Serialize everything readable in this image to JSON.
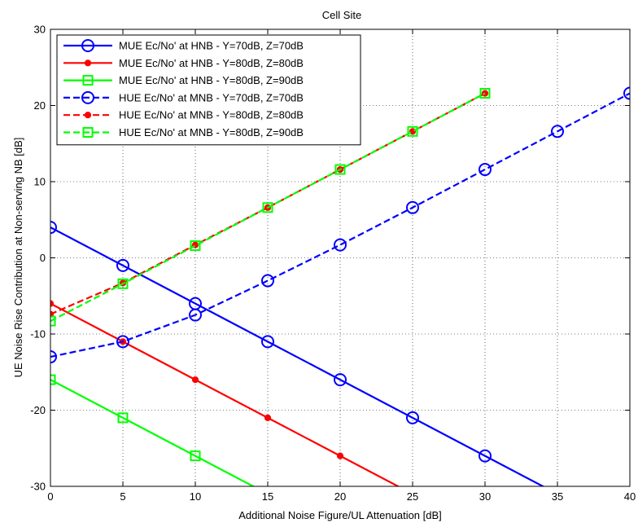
{
  "chart_data": {
    "type": "line",
    "title": "Cell Site",
    "xlabel": "Additional Noise Figure/UL Attenuation [dB]",
    "ylabel": "UE Noise Rise Contribution at Non-serving NB [dB]",
    "xlim": [
      0,
      40
    ],
    "ylim": [
      -30,
      30
    ],
    "xticks": [
      0,
      5,
      10,
      15,
      20,
      25,
      30,
      35,
      40
    ],
    "yticks": [
      -30,
      -20,
      -10,
      0,
      10,
      20,
      30
    ],
    "grid": true,
    "legend_position": "top-left",
    "series": [
      {
        "name": "MUE Ec/No' at HNB - Y=70dB, Z=70dB",
        "color": "#0000ff",
        "dash": "solid",
        "marker": "circle",
        "x": [
          0,
          5,
          10,
          15,
          20,
          25,
          30,
          35,
          40
        ],
        "y": [
          4,
          -1,
          -6,
          -11,
          -16,
          -21,
          -26,
          -31,
          -36
        ]
      },
      {
        "name": "MUE Ec/No' at HNB - Y=80dB, Z=80dB",
        "color": "#ff0000",
        "dash": "solid",
        "marker": "dot",
        "x": [
          0,
          5,
          10,
          15,
          20,
          25,
          30
        ],
        "y": [
          -6,
          -11,
          -16,
          -21,
          -26,
          -31,
          -36
        ]
      },
      {
        "name": "MUE Ec/No' at HNB - Y=80dB, Z=90dB",
        "color": "#00ff00",
        "dash": "solid",
        "marker": "square",
        "x": [
          0,
          5,
          10,
          15,
          20
        ],
        "y": [
          -16,
          -21,
          -26,
          -31,
          -36
        ]
      },
      {
        "name": "HUE Ec/No' at MNB - Y=70dB, Z=70dB",
        "color": "#0000ff",
        "dash": "dashed",
        "marker": "circle",
        "x": [
          0,
          5,
          10,
          15,
          20,
          25,
          30,
          35,
          40
        ],
        "y": [
          -13,
          -11,
          -7.5,
          -3,
          1.7,
          6.6,
          11.6,
          16.6,
          21.6
        ]
      },
      {
        "name": "HUE Ec/No' at MNB - Y=80dB, Z=80dB",
        "color": "#ff0000",
        "dash": "dashed",
        "marker": "dot",
        "x": [
          0,
          5,
          10,
          15,
          20,
          25,
          30
        ],
        "y": [
          -7.4,
          -3.3,
          1.7,
          6.6,
          11.6,
          16.6,
          21.6
        ]
      },
      {
        "name": "HUE Ec/No' at MNB - Y=80dB, Z=90dB",
        "color": "#00ff00",
        "dash": "dashed",
        "marker": "square",
        "x": [
          0,
          5,
          10,
          15,
          20,
          25,
          30
        ],
        "y": [
          -8.3,
          -3.4,
          1.6,
          6.6,
          11.6,
          16.6,
          21.6
        ]
      }
    ]
  }
}
